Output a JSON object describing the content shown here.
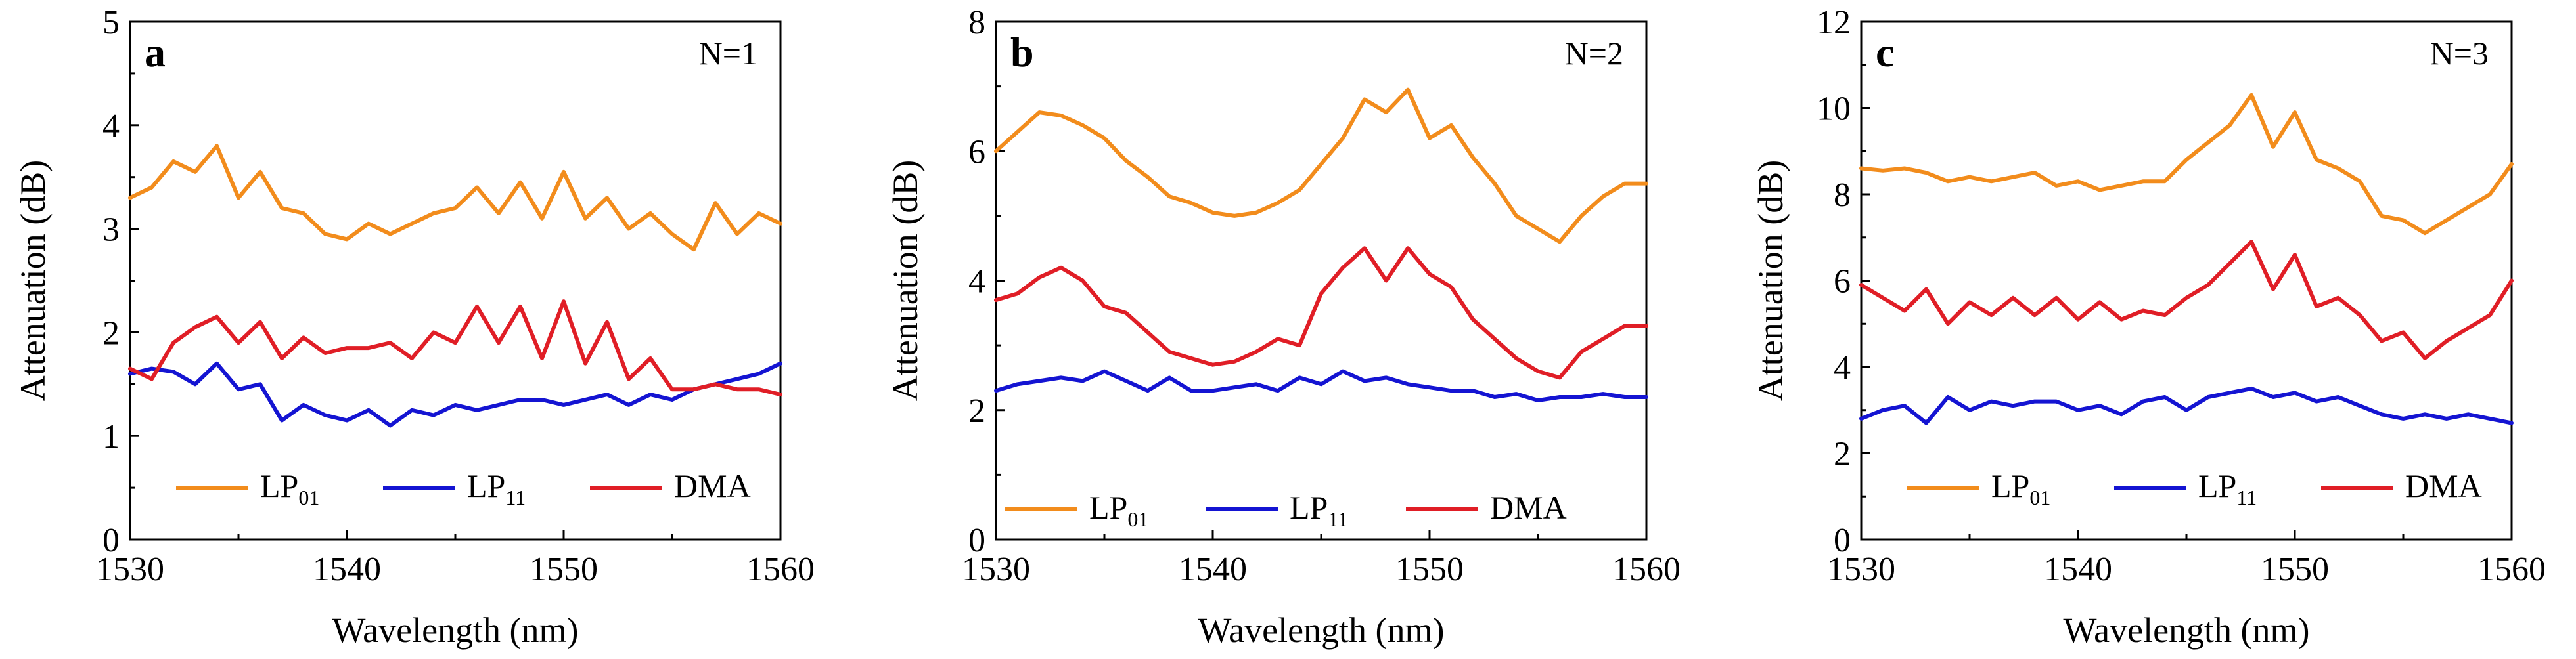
{
  "colors": {
    "LP01": "#f28c1c",
    "LP11": "#1414d2",
    "DMA": "#e01e26",
    "axis": "#000000"
  },
  "chart_data": [
    {
      "type": "line",
      "panel": "a",
      "annotation": "N=1",
      "xlabel": "Wavelength (nm)",
      "ylabel": "Attenuation (dB)",
      "xlim": [
        1530,
        1560
      ],
      "ylim": [
        0,
        5
      ],
      "xticks": [
        1530,
        1540,
        1550,
        1560
      ],
      "yticks": [
        0,
        1,
        2,
        3,
        4,
        5
      ],
      "legend": {
        "placement": "bottom",
        "entries": [
          {
            "base": "LP",
            "sub": "01"
          },
          {
            "base": "LP",
            "sub": "11"
          },
          {
            "base": "DMA",
            "sub": ""
          }
        ]
      },
      "x": [
        1530,
        1531,
        1532,
        1533,
        1534,
        1535,
        1536,
        1537,
        1538,
        1539,
        1540,
        1541,
        1542,
        1543,
        1544,
        1545,
        1546,
        1547,
        1548,
        1549,
        1550,
        1551,
        1552,
        1553,
        1554,
        1555,
        1556,
        1557,
        1558,
        1559,
        1560
      ],
      "series": [
        {
          "name": "LP01",
          "values": [
            3.3,
            3.4,
            3.65,
            3.55,
            3.8,
            3.3,
            3.55,
            3.2,
            3.15,
            2.95,
            2.9,
            3.05,
            2.95,
            3.05,
            3.15,
            3.2,
            3.4,
            3.15,
            3.45,
            3.1,
            3.55,
            3.1,
            3.3,
            3.0,
            3.15,
            2.95,
            2.8,
            3.25,
            2.95,
            3.15,
            3.05
          ]
        },
        {
          "name": "LP11",
          "values": [
            1.6,
            1.65,
            1.62,
            1.5,
            1.7,
            1.45,
            1.5,
            1.15,
            1.3,
            1.2,
            1.15,
            1.25,
            1.1,
            1.25,
            1.2,
            1.3,
            1.25,
            1.3,
            1.35,
            1.35,
            1.3,
            1.35,
            1.4,
            1.3,
            1.4,
            1.35,
            1.45,
            1.5,
            1.55,
            1.6,
            1.7
          ]
        },
        {
          "name": "DMA",
          "values": [
            1.65,
            1.55,
            1.9,
            2.05,
            2.15,
            1.9,
            2.1,
            1.75,
            1.95,
            1.8,
            1.85,
            1.85,
            1.9,
            1.75,
            2.0,
            1.9,
            2.25,
            1.9,
            2.25,
            1.75,
            2.3,
            1.7,
            2.1,
            1.55,
            1.75,
            1.45,
            1.45,
            1.5,
            1.45,
            1.45,
            1.4
          ]
        }
      ]
    },
    {
      "type": "line",
      "panel": "b",
      "annotation": "N=2",
      "xlabel": "Wavelength (nm)",
      "ylabel": "Attenuation (dB)",
      "xlim": [
        1530,
        1560
      ],
      "ylim": [
        0,
        8
      ],
      "xticks": [
        1530,
        1540,
        1550,
        1560
      ],
      "yticks": [
        0,
        2,
        4,
        6,
        8
      ],
      "legend": {
        "placement": "bottom",
        "entries": [
          {
            "base": "LP",
            "sub": "01"
          },
          {
            "base": "LP",
            "sub": "11"
          },
          {
            "base": "DMA",
            "sub": ""
          }
        ]
      },
      "x": [
        1530,
        1531,
        1532,
        1533,
        1534,
        1535,
        1536,
        1537,
        1538,
        1539,
        1540,
        1541,
        1542,
        1543,
        1544,
        1545,
        1546,
        1547,
        1548,
        1549,
        1550,
        1551,
        1552,
        1553,
        1554,
        1555,
        1556,
        1557,
        1558,
        1559,
        1560
      ],
      "series": [
        {
          "name": "LP01",
          "values": [
            6.0,
            6.3,
            6.6,
            6.55,
            6.4,
            6.2,
            5.85,
            5.6,
            5.3,
            5.2,
            5.05,
            5.0,
            5.05,
            5.2,
            5.4,
            5.8,
            6.2,
            6.8,
            6.6,
            6.95,
            6.2,
            6.4,
            5.9,
            5.5,
            5.0,
            4.8,
            4.6,
            5.0,
            5.3,
            5.5,
            5.5
          ]
        },
        {
          "name": "LP11",
          "values": [
            2.3,
            2.4,
            2.45,
            2.5,
            2.45,
            2.6,
            2.45,
            2.3,
            2.5,
            2.3,
            2.3,
            2.35,
            2.4,
            2.3,
            2.5,
            2.4,
            2.6,
            2.45,
            2.5,
            2.4,
            2.35,
            2.3,
            2.3,
            2.2,
            2.25,
            2.15,
            2.2,
            2.2,
            2.25,
            2.2,
            2.2
          ]
        },
        {
          "name": "DMA",
          "values": [
            3.7,
            3.8,
            4.05,
            4.2,
            4.0,
            3.6,
            3.5,
            3.2,
            2.9,
            2.8,
            2.7,
            2.75,
            2.9,
            3.1,
            3.0,
            3.8,
            4.2,
            4.5,
            4.0,
            4.5,
            4.1,
            3.9,
            3.4,
            3.1,
            2.8,
            2.6,
            2.5,
            2.9,
            3.1,
            3.3,
            3.3
          ]
        }
      ]
    },
    {
      "type": "line",
      "panel": "c",
      "annotation": "N=3",
      "xlabel": "Wavelength (nm)",
      "ylabel": "Attenuation (dB)",
      "xlim": [
        1530,
        1560
      ],
      "ylim": [
        0,
        12
      ],
      "xticks": [
        1530,
        1540,
        1550,
        1560
      ],
      "yticks": [
        0,
        2,
        4,
        6,
        8,
        10,
        12
      ],
      "legend": {
        "placement": "bottom",
        "entries": [
          {
            "base": "LP",
            "sub": "01"
          },
          {
            "base": "LP",
            "sub": "11"
          },
          {
            "base": "DMA",
            "sub": ""
          }
        ]
      },
      "x": [
        1530,
        1531,
        1532,
        1533,
        1534,
        1535,
        1536,
        1537,
        1538,
        1539,
        1540,
        1541,
        1542,
        1543,
        1544,
        1545,
        1546,
        1547,
        1548,
        1549,
        1550,
        1551,
        1552,
        1553,
        1554,
        1555,
        1556,
        1557,
        1558,
        1559,
        1560
      ],
      "series": [
        {
          "name": "LP01",
          "values": [
            8.6,
            8.55,
            8.6,
            8.5,
            8.3,
            8.4,
            8.3,
            8.4,
            8.5,
            8.2,
            8.3,
            8.1,
            8.2,
            8.3,
            8.3,
            8.8,
            9.2,
            9.6,
            10.3,
            9.1,
            9.9,
            8.8,
            8.6,
            8.3,
            7.5,
            7.4,
            7.1,
            7.4,
            7.7,
            8.0,
            8.7
          ]
        },
        {
          "name": "LP11",
          "values": [
            2.8,
            3.0,
            3.1,
            2.7,
            3.3,
            3.0,
            3.2,
            3.1,
            3.2,
            3.2,
            3.0,
            3.1,
            2.9,
            3.2,
            3.3,
            3.0,
            3.3,
            3.4,
            3.5,
            3.3,
            3.4,
            3.2,
            3.3,
            3.1,
            2.9,
            2.8,
            2.9,
            2.8,
            2.9,
            2.8,
            2.7
          ]
        },
        {
          "name": "DMA",
          "values": [
            5.9,
            5.6,
            5.3,
            5.8,
            5.0,
            5.5,
            5.2,
            5.6,
            5.2,
            5.6,
            5.1,
            5.5,
            5.1,
            5.3,
            5.2,
            5.6,
            5.9,
            6.4,
            6.9,
            5.8,
            6.6,
            5.4,
            5.6,
            5.2,
            4.6,
            4.8,
            4.2,
            4.6,
            4.9,
            5.2,
            6.0
          ]
        }
      ]
    }
  ]
}
